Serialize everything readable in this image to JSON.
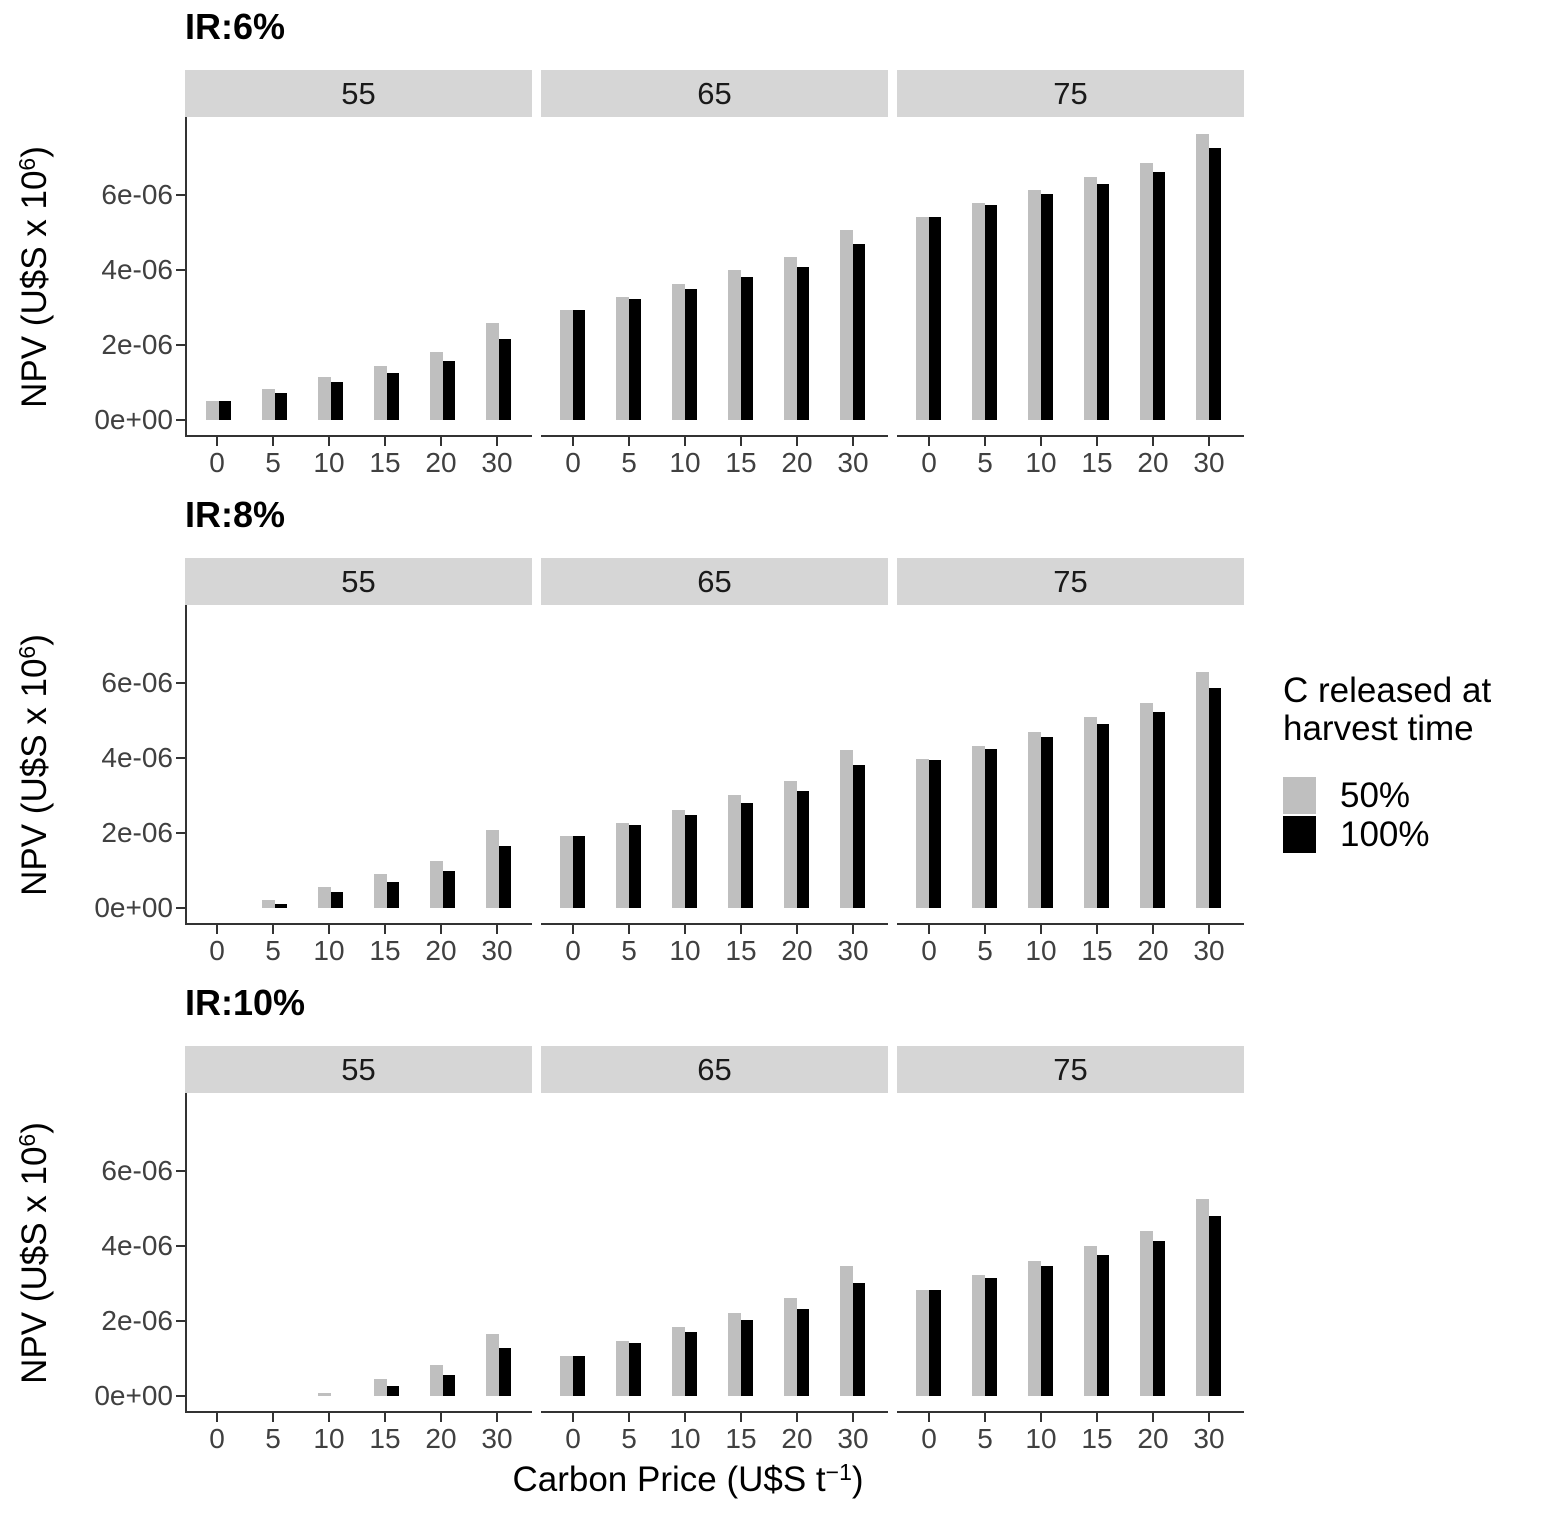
{
  "chart_data": {
    "type": "bar",
    "layout": "3 facet rows (interest rates) x 3 facet columns (rotation/price levels), dodged bars",
    "unit_note": "bar values expressed in units of 1e-06, matching y tick labels",
    "x_categories": [
      "0",
      "5",
      "10",
      "15",
      "20",
      "30"
    ],
    "y_tick_labels": [
      "0e+00",
      "2e-06",
      "4e-06",
      "6e-06"
    ],
    "y_tick_values": [
      0,
      2,
      4,
      6
    ],
    "ylim_units": [
      0,
      8.1
    ],
    "grid": false,
    "legend_position": "right",
    "y_axis_title": {
      "text": "NPV (U$S x 10",
      "sup": "6",
      "suffix": ")"
    },
    "x_axis_title": {
      "text": "Carbon Price (U$S t",
      "sup": "−1",
      "suffix": ")"
    },
    "series_names": [
      "50%",
      "100%"
    ],
    "series_colors": {
      "50%": "#bfbfbf",
      "100%": "#000000"
    },
    "rows": [
      {
        "title": "IR:6%",
        "facets": [
          {
            "label": "55",
            "series": [
              {
                "name": "50%",
                "values": [
                  0.5,
                  0.82,
                  1.14,
                  1.44,
                  1.8,
                  2.58
                ]
              },
              {
                "name": "100%",
                "values": [
                  0.5,
                  0.73,
                  1.01,
                  1.26,
                  1.57,
                  2.17
                ]
              }
            ]
          },
          {
            "label": "65",
            "series": [
              {
                "name": "50%",
                "values": [
                  2.93,
                  3.28,
                  3.63,
                  4.0,
                  4.35,
                  5.07
                ]
              },
              {
                "name": "100%",
                "values": [
                  2.92,
                  3.22,
                  3.48,
                  3.8,
                  4.08,
                  4.7
                ]
              }
            ]
          },
          {
            "label": "75",
            "series": [
              {
                "name": "50%",
                "values": [
                  5.42,
                  5.78,
                  6.12,
                  6.48,
                  6.85,
                  7.62
                ]
              },
              {
                "name": "100%",
                "values": [
                  5.4,
                  5.72,
                  6.02,
                  6.3,
                  6.62,
                  7.25
                ]
              }
            ]
          }
        ]
      },
      {
        "title": "IR:8%",
        "facets": [
          {
            "label": "55",
            "series": [
              {
                "name": "50%",
                "values": [
                  0,
                  0.2,
                  0.56,
                  0.9,
                  1.25,
                  2.08
                ]
              },
              {
                "name": "100%",
                "values": [
                  0,
                  0.11,
                  0.43,
                  0.7,
                  0.99,
                  1.65
                ]
              }
            ]
          },
          {
            "label": "65",
            "series": [
              {
                "name": "50%",
                "values": [
                  1.92,
                  2.28,
                  2.6,
                  3.0,
                  3.38,
                  4.2
                ]
              },
              {
                "name": "100%",
                "values": [
                  1.91,
                  2.21,
                  2.48,
                  2.8,
                  3.11,
                  3.8
                ]
              }
            ]
          },
          {
            "label": "75",
            "series": [
              {
                "name": "50%",
                "values": [
                  3.96,
                  4.32,
                  4.7,
                  5.08,
                  5.47,
                  6.3
                ]
              },
              {
                "name": "100%",
                "values": [
                  3.94,
                  4.25,
                  4.57,
                  4.9,
                  5.22,
                  5.87
                ]
              }
            ]
          }
        ]
      },
      {
        "title": "IR:10%",
        "facets": [
          {
            "label": "55",
            "series": [
              {
                "name": "50%",
                "values": [
                  0,
                  0,
                  0.08,
                  0.44,
                  0.83,
                  1.66
                ]
              },
              {
                "name": "100%",
                "values": [
                  0,
                  0,
                  0,
                  0.27,
                  0.57,
                  1.28
                ]
              }
            ]
          },
          {
            "label": "65",
            "series": [
              {
                "name": "50%",
                "values": [
                  1.07,
                  1.47,
                  1.84,
                  2.22,
                  2.6,
                  3.47
                ]
              },
              {
                "name": "100%",
                "values": [
                  1.06,
                  1.4,
                  1.7,
                  2.02,
                  2.33,
                  3.02
                ]
              }
            ]
          },
          {
            "label": "75",
            "series": [
              {
                "name": "50%",
                "values": [
                  2.83,
                  3.23,
                  3.61,
                  4.0,
                  4.41,
                  5.24
                ]
              },
              {
                "name": "100%",
                "values": [
                  2.82,
                  3.15,
                  3.47,
                  3.77,
                  4.14,
                  4.81
                ]
              }
            ]
          }
        ]
      }
    ]
  },
  "legend": {
    "title_lines": [
      "C released at",
      "harvest time"
    ],
    "items": [
      {
        "label": "50%",
        "color": "#bfbfbf"
      },
      {
        "label": "100%",
        "color": "#000000"
      }
    ]
  },
  "colors": {
    "bar_gray": "#bfbfbf",
    "bar_black": "#000000",
    "strip_bg": "#d6d6d6",
    "axis_line": "#333333",
    "tick_text": "#404040"
  }
}
